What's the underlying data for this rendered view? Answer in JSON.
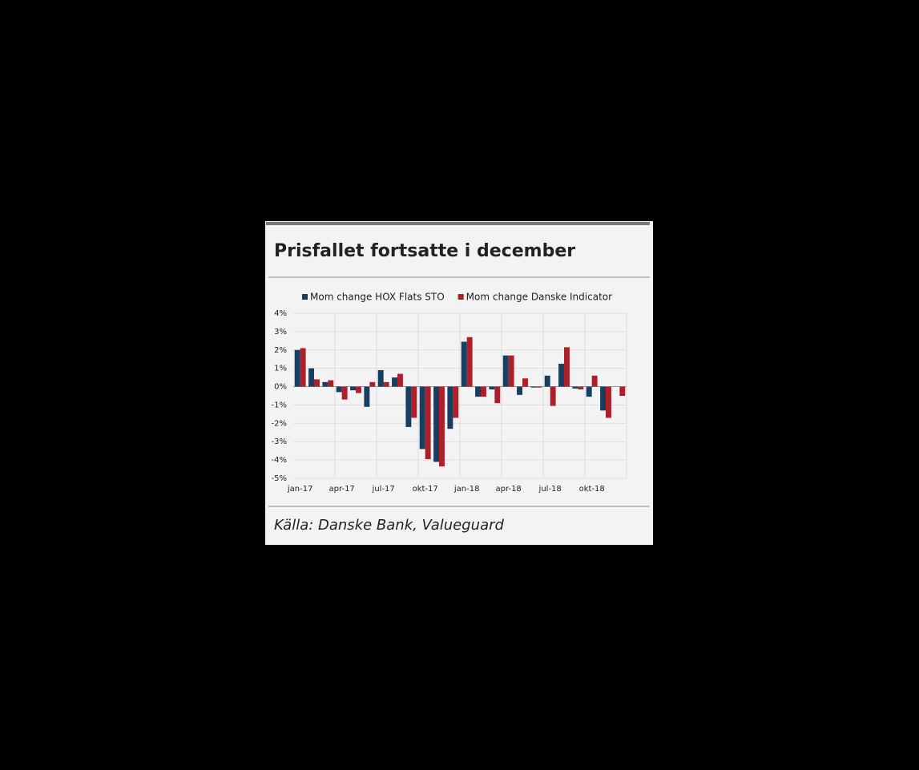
{
  "chart_data": {
    "type": "bar",
    "title": "Prisfallet fortsatte i december",
    "source": "Källa: Danske Bank, Valueguard",
    "categories": [
      "jan-17",
      null,
      null,
      "apr-17",
      null,
      null,
      "jul-17",
      null,
      null,
      "okt-17",
      null,
      null,
      "jan-18",
      null,
      null,
      "apr-18",
      null,
      null,
      "jul-18",
      null,
      null,
      "okt-18",
      null,
      null
    ],
    "series": [
      {
        "name": "Mom change HOX Flats STO",
        "color": "#173f63",
        "values": [
          2.0,
          1.0,
          0.25,
          -0.3,
          -0.2,
          -1.1,
          0.9,
          0.5,
          -2.2,
          -3.4,
          -4.1,
          -2.3,
          2.45,
          -0.55,
          -0.15,
          1.7,
          -0.45,
          -0.05,
          0.6,
          1.25,
          -0.1,
          -0.55,
          -1.3,
          null
        ]
      },
      {
        "name": "Mom change Danske Indicator",
        "color": "#b01e2a",
        "values": [
          2.1,
          0.4,
          0.35,
          -0.7,
          -0.35,
          0.25,
          0.25,
          0.7,
          -1.7,
          -3.95,
          -4.35,
          -1.7,
          2.7,
          -0.55,
          -0.9,
          1.7,
          0.45,
          -0.05,
          -1.05,
          2.15,
          -0.15,
          0.6,
          -1.7,
          -0.5
        ]
      }
    ],
    "ylim": [
      -5,
      4
    ],
    "yticks": [
      {
        "value": -5,
        "label": "-5%"
      },
      {
        "value": -4,
        "label": "-4%"
      },
      {
        "value": -3,
        "label": "-3%"
      },
      {
        "value": -2,
        "label": "-2%"
      },
      {
        "value": -1,
        "label": "-1%"
      },
      {
        "value": 0,
        "label": "0%"
      },
      {
        "value": 1,
        "label": "1%"
      },
      {
        "value": 2,
        "label": "2%"
      },
      {
        "value": 3,
        "label": "3%"
      },
      {
        "value": 4,
        "label": "4%"
      }
    ],
    "grid": true
  }
}
